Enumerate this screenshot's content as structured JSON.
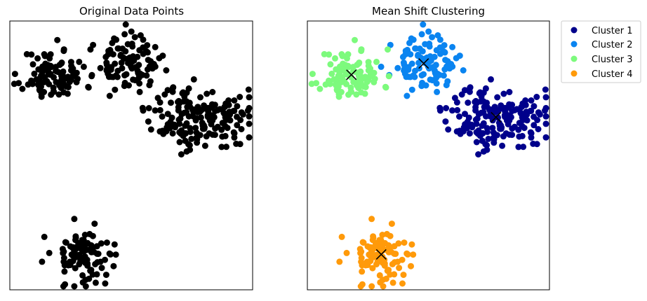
{
  "chart_data": [
    {
      "type": "scatter",
      "title": "Original Data Points",
      "xlabel": "",
      "ylabel": "",
      "axis_ticks": false,
      "grid": false,
      "point_color": "#000000",
      "clusters": [
        {
          "center": [
            -7.8,
            7.6
          ],
          "spread": [
            1.0,
            0.9
          ],
          "n": 100,
          "seed": 11
        },
        {
          "center": [
            -3.2,
            8.4
          ],
          "spread": [
            1.0,
            0.9
          ],
          "n": 100,
          "seed": 23
        },
        {
          "center": [
            1.4,
            4.6
          ],
          "spread": [
            1.5,
            1.1
          ],
          "n": 180,
          "seed": 37
        },
        {
          "center": [
            -5.9,
            -5.1
          ],
          "spread": [
            1.0,
            1.0
          ],
          "n": 100,
          "seed": 53
        }
      ]
    },
    {
      "type": "scatter",
      "title": "Mean Shift Clustering",
      "xlabel": "",
      "ylabel": "",
      "axis_ticks": false,
      "grid": false,
      "legend_position": "outside-top-right",
      "series": [
        {
          "name": "Cluster 1",
          "color": "#00008b",
          "center": [
            1.4,
            4.6
          ],
          "spread": [
            1.5,
            1.1
          ],
          "n": 180,
          "seed": 37
        },
        {
          "name": "Cluster 2",
          "color": "#0a84f0",
          "center": [
            -3.2,
            8.4
          ],
          "spread": [
            1.0,
            0.9
          ],
          "n": 100,
          "seed": 23
        },
        {
          "name": "Cluster 3",
          "color": "#7dfa7d",
          "center": [
            -7.8,
            7.6
          ],
          "spread": [
            1.0,
            0.9
          ],
          "n": 100,
          "seed": 11
        },
        {
          "name": "Cluster 4",
          "color": "#ff9a0a",
          "center": [
            -5.9,
            -5.1
          ],
          "spread": [
            1.0,
            1.0
          ],
          "n": 100,
          "seed": 53
        }
      ],
      "centroid_marker": "x",
      "centroid_color": "#000000"
    }
  ],
  "view": {
    "xlim": [
      -10.6,
      4.8
    ],
    "ylim": [
      -7.6,
      11.4
    ]
  }
}
